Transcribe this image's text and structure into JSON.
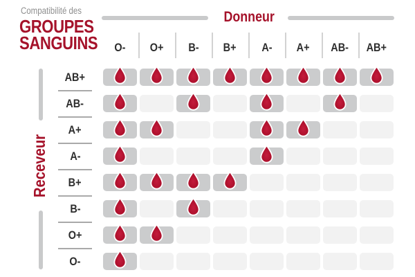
{
  "title": {
    "eyebrow": "Compatibilité des",
    "line1": "GROUPES",
    "line2": "SANGUINS"
  },
  "axes": {
    "donor_label": "Donneur",
    "receiver_label": "Receveur"
  },
  "donors": [
    "O-",
    "O+",
    "B-",
    "B+",
    "A-",
    "A+",
    "AB-",
    "AB+"
  ],
  "receivers": [
    "AB+",
    "AB-",
    "A+",
    "A-",
    "B+",
    "B-",
    "O+",
    "O-"
  ],
  "compatibility_matrix": [
    [
      1,
      1,
      1,
      1,
      1,
      1,
      1,
      1
    ],
    [
      1,
      0,
      1,
      0,
      1,
      0,
      1,
      0
    ],
    [
      1,
      1,
      0,
      0,
      1,
      1,
      0,
      0
    ],
    [
      1,
      0,
      0,
      0,
      1,
      0,
      0,
      0
    ],
    [
      1,
      1,
      1,
      1,
      0,
      0,
      0,
      0
    ],
    [
      1,
      0,
      1,
      0,
      0,
      0,
      0,
      0
    ],
    [
      1,
      1,
      0,
      0,
      0,
      0,
      0,
      0
    ],
    [
      1,
      0,
      0,
      0,
      0,
      0,
      0,
      0
    ]
  ],
  "icons": {
    "compatible_marker": "blood-drop-icon"
  },
  "colors": {
    "brand_red": "#a5122a",
    "drop_red": "#ad102c",
    "cell_compatible": "#cbcccd",
    "cell_incompatible": "#f2f2f2",
    "axis_bar_gray": "#c9cacb",
    "header_separator": "#d2d2d2",
    "row_separator": "#a9a9a9",
    "label_text": "#2d2d2d",
    "eyebrow_text": "#8f8f8f"
  },
  "chart_data": {
    "type": "heatmap",
    "title": "Compatibilité des GROUPES SANGUINS",
    "x_axis_label": "Donneur",
    "y_axis_label": "Receveur",
    "columns": [
      "O-",
      "O+",
      "B-",
      "B+",
      "A-",
      "A+",
      "AB-",
      "AB+"
    ],
    "rows": [
      "AB+",
      "AB-",
      "A+",
      "A-",
      "B+",
      "B-",
      "O+",
      "O-"
    ],
    "values": [
      [
        1,
        1,
        1,
        1,
        1,
        1,
        1,
        1
      ],
      [
        1,
        0,
        1,
        0,
        1,
        0,
        1,
        0
      ],
      [
        1,
        1,
        0,
        0,
        1,
        1,
        0,
        0
      ],
      [
        1,
        0,
        0,
        0,
        1,
        0,
        0,
        0
      ],
      [
        1,
        1,
        1,
        1,
        0,
        0,
        0,
        0
      ],
      [
        1,
        0,
        1,
        0,
        0,
        0,
        0,
        0
      ],
      [
        1,
        1,
        0,
        0,
        0,
        0,
        0,
        0
      ],
      [
        1,
        0,
        0,
        0,
        0,
        0,
        0,
        0
      ]
    ],
    "value_meaning": {
      "1": "compatible - blood drop shown on dark gray cell",
      "0": "not compatible - empty light gray cell"
    },
    "legend_position": "none",
    "grid": false
  }
}
